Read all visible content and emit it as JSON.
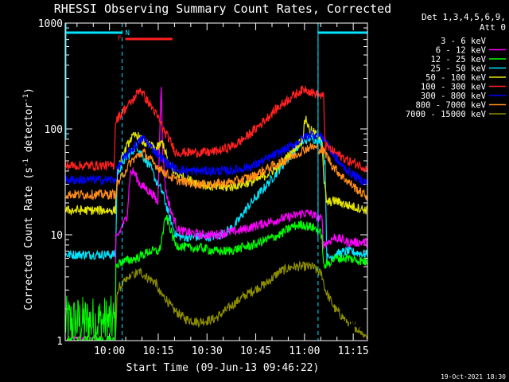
{
  "chart_data": {
    "type": "line",
    "title": "RHESSI Observing Summary Count Rates, Corrected",
    "ylabel_main": "Corrected Count Rate (s",
    "ylabel_mid": " detector",
    "ylabel_end": ")",
    "ylabel_sup": "-1",
    "xlabel": "Start Time (09-Jun-13 09:46:22)",
    "timestamp": "19-Oct-2021 18:30",
    "y_scale": "log",
    "ylim": [
      1,
      1000
    ],
    "y_ticks": [
      {
        "value": 1,
        "label": "1"
      },
      {
        "value": 10,
        "label": "10"
      },
      {
        "value": 100,
        "label": "100"
      },
      {
        "value": 1000,
        "label": "1000"
      }
    ],
    "x_range_minutes": [
      0,
      93
    ],
    "x_ticks": [
      {
        "minute": 13.63,
        "label": "10:00"
      },
      {
        "minute": 28.63,
        "label": "10:15"
      },
      {
        "minute": 43.63,
        "label": "10:30"
      },
      {
        "minute": 58.63,
        "label": "10:45"
      },
      {
        "minute": 73.63,
        "label": "11:00"
      },
      {
        "minute": 88.63,
        "label": "11:15"
      }
    ],
    "legend": {
      "header": [
        "Det 1,3,4,5,6,9,",
        "Att 0"
      ],
      "placement": "right"
    },
    "flags": [
      {
        "label": "N",
        "color": "#00e5ff"
      },
      {
        "label": "F",
        "color": "#ff2020"
      }
    ],
    "night_boundaries_minutes": [
      17.5,
      77.8
    ],
    "series": [
      {
        "name": "3 - 6 keV",
        "color": "#000000",
        "points": [
          [
            0,
            1.0
          ],
          [
            15.5,
            1.0
          ],
          [
            17,
            2.3
          ],
          [
            22,
            5
          ],
          [
            26,
            6
          ],
          [
            29,
            8
          ],
          [
            30,
            6.5
          ],
          [
            34,
            4
          ],
          [
            38,
            3.8
          ],
          [
            42,
            3.5
          ],
          [
            48,
            3.3
          ],
          [
            52,
            3.5
          ],
          [
            57,
            4.5
          ],
          [
            62,
            5.5
          ],
          [
            66,
            6.5
          ],
          [
            70,
            8.5
          ],
          [
            73,
            9.5
          ],
          [
            75,
            9
          ],
          [
            78,
            7
          ],
          [
            79,
            5.5
          ],
          [
            80,
            4
          ],
          [
            83,
            3
          ],
          [
            85,
            2
          ],
          [
            88,
            1.5
          ],
          [
            93,
            1.2
          ]
        ]
      },
      {
        "name": "6 - 12 keV",
        "color": "#ff00ff",
        "points": [
          [
            0,
            1.0
          ],
          [
            15.5,
            1.0
          ],
          [
            15.5,
            9
          ],
          [
            17,
            11
          ],
          [
            19,
            15
          ],
          [
            20,
            38
          ],
          [
            21,
            40
          ],
          [
            23,
            30
          ],
          [
            25,
            27
          ],
          [
            27,
            24
          ],
          [
            28.5,
            20
          ],
          [
            29.5,
            270
          ],
          [
            30,
            60
          ],
          [
            31,
            25
          ],
          [
            33,
            15
          ],
          [
            35,
            11
          ],
          [
            38,
            10.5
          ],
          [
            42,
            10
          ],
          [
            46,
            10
          ],
          [
            50,
            10.5
          ],
          [
            54,
            11
          ],
          [
            58,
            12
          ],
          [
            62,
            13
          ],
          [
            66,
            14
          ],
          [
            70,
            15
          ],
          [
            73,
            16
          ],
          [
            75,
            16
          ],
          [
            77,
            15
          ],
          [
            79,
            14
          ],
          [
            79.5,
            8
          ],
          [
            83,
            9.5
          ],
          [
            87,
            8.5
          ],
          [
            93,
            8.5
          ]
        ]
      },
      {
        "name": "12 - 25 keV",
        "color": "#00ff00",
        "points": [
          [
            0,
            1.0
          ],
          [
            15.5,
            1.0
          ],
          [
            15.5,
            5
          ],
          [
            17,
            5.5
          ],
          [
            22,
            6
          ],
          [
            26,
            7
          ],
          [
            29,
            7
          ],
          [
            31,
            15
          ],
          [
            34,
            8
          ],
          [
            38,
            7.5
          ],
          [
            42,
            7.5
          ],
          [
            46,
            7
          ],
          [
            50,
            7
          ],
          [
            54,
            7.5
          ],
          [
            58,
            8
          ],
          [
            62,
            9
          ],
          [
            66,
            10
          ],
          [
            70,
            12
          ],
          [
            73,
            12.5
          ],
          [
            75,
            12
          ],
          [
            77,
            11.5
          ],
          [
            79,
            10
          ],
          [
            79.5,
            5
          ],
          [
            83,
            6
          ],
          [
            87,
            6
          ],
          [
            93,
            5.5
          ]
        ]
      },
      {
        "name": "25 - 50 keV",
        "color": "#00e5ff",
        "points": [
          [
            0,
            6.5
          ],
          [
            15.5,
            6.5
          ],
          [
            16,
            38
          ],
          [
            18,
            50
          ],
          [
            20,
            58
          ],
          [
            22,
            70
          ],
          [
            24,
            55
          ],
          [
            26,
            45
          ],
          [
            28,
            32
          ],
          [
            30,
            25
          ],
          [
            32,
            15
          ],
          [
            34,
            10
          ],
          [
            36,
            9.5
          ],
          [
            40,
            9.5
          ],
          [
            44,
            9.5
          ],
          [
            48,
            10
          ],
          [
            52,
            12
          ],
          [
            56,
            18
          ],
          [
            60,
            25
          ],
          [
            64,
            35
          ],
          [
            68,
            50
          ],
          [
            72,
            70
          ],
          [
            75,
            82
          ],
          [
            77,
            80
          ],
          [
            79,
            75
          ],
          [
            80,
            45
          ],
          [
            80.5,
            6
          ],
          [
            83,
            6.5
          ],
          [
            87,
            7
          ],
          [
            93,
            6.5
          ]
        ]
      },
      {
        "name": "50 - 100 keV",
        "color": "#e6e600",
        "points": [
          [
            0,
            17
          ],
          [
            15.5,
            17
          ],
          [
            16,
            40
          ],
          [
            18,
            58
          ],
          [
            20,
            80
          ],
          [
            22,
            88
          ],
          [
            24,
            75
          ],
          [
            26,
            70
          ],
          [
            28,
            65
          ],
          [
            30,
            75
          ],
          [
            32,
            45
          ],
          [
            34,
            38
          ],
          [
            38,
            33
          ],
          [
            42,
            30
          ],
          [
            46,
            28
          ],
          [
            50,
            28
          ],
          [
            54,
            30
          ],
          [
            58,
            32
          ],
          [
            62,
            37
          ],
          [
            66,
            45
          ],
          [
            70,
            62
          ],
          [
            73,
            80
          ],
          [
            74,
            130
          ],
          [
            75,
            100
          ],
          [
            77,
            90
          ],
          [
            79,
            85
          ],
          [
            79.5,
            35
          ],
          [
            80.5,
            20
          ],
          [
            83,
            21
          ],
          [
            87,
            19
          ],
          [
            93,
            17
          ]
        ]
      },
      {
        "name": "100 - 300 keV",
        "color": "#ff2020",
        "points": [
          [
            0,
            45
          ],
          [
            15,
            45
          ],
          [
            15.5,
            120
          ],
          [
            18,
            150
          ],
          [
            21,
            190
          ],
          [
            23,
            240
          ],
          [
            25,
            190
          ],
          [
            27,
            155
          ],
          [
            29,
            120
          ],
          [
            30,
            100
          ],
          [
            32,
            80
          ],
          [
            34,
            60
          ],
          [
            37,
            60
          ],
          [
            40,
            60
          ],
          [
            44,
            60
          ],
          [
            48,
            63
          ],
          [
            52,
            70
          ],
          [
            56,
            85
          ],
          [
            60,
            110
          ],
          [
            64,
            145
          ],
          [
            68,
            185
          ],
          [
            72,
            225
          ],
          [
            74,
            240
          ],
          [
            76,
            220
          ],
          [
            78,
            210
          ],
          [
            79.5,
            200
          ],
          [
            80,
            70
          ],
          [
            83,
            60
          ],
          [
            87,
            50
          ],
          [
            91,
            45
          ],
          [
            93,
            42
          ]
        ]
      },
      {
        "name": "300 - 800 keV",
        "color": "#0000ff",
        "points": [
          [
            0,
            33
          ],
          [
            15.5,
            33
          ],
          [
            16,
            42
          ],
          [
            18,
            52
          ],
          [
            20,
            62
          ],
          [
            22,
            72
          ],
          [
            24,
            82
          ],
          [
            26,
            70
          ],
          [
            28,
            60
          ],
          [
            30,
            52
          ],
          [
            32,
            46
          ],
          [
            34,
            42
          ],
          [
            38,
            40
          ],
          [
            42,
            40
          ],
          [
            46,
            40
          ],
          [
            50,
            40
          ],
          [
            54,
            42
          ],
          [
            58,
            45
          ],
          [
            62,
            52
          ],
          [
            66,
            60
          ],
          [
            70,
            70
          ],
          [
            74,
            85
          ],
          [
            76,
            90
          ],
          [
            78,
            87
          ],
          [
            80,
            80
          ],
          [
            82,
            60
          ],
          [
            85,
            45
          ],
          [
            88,
            38
          ],
          [
            91,
            33
          ],
          [
            93,
            31
          ]
        ]
      },
      {
        "name": "800 - 7000 keV",
        "color": "#ff8c1a",
        "points": [
          [
            0,
            24
          ],
          [
            15.5,
            24
          ],
          [
            16,
            30
          ],
          [
            18,
            38
          ],
          [
            20,
            48
          ],
          [
            22,
            55
          ],
          [
            24,
            60
          ],
          [
            26,
            52
          ],
          [
            28,
            45
          ],
          [
            30,
            40
          ],
          [
            32,
            36
          ],
          [
            34,
            33
          ],
          [
            38,
            31
          ],
          [
            42,
            30
          ],
          [
            46,
            30
          ],
          [
            50,
            31
          ],
          [
            54,
            33
          ],
          [
            58,
            36
          ],
          [
            62,
            42
          ],
          [
            66,
            48
          ],
          [
            70,
            55
          ],
          [
            74,
            65
          ],
          [
            76,
            68
          ],
          [
            78,
            65
          ],
          [
            80,
            60
          ],
          [
            82,
            46
          ],
          [
            85,
            36
          ],
          [
            88,
            30
          ],
          [
            91,
            25
          ],
          [
            93,
            23
          ]
        ]
      },
      {
        "name": "7000 - 15000 keV",
        "color": "#8c8c00",
        "points": [
          [
            0,
            1.0
          ],
          [
            15.5,
            1.0
          ],
          [
            16,
            3
          ],
          [
            18,
            3.5
          ],
          [
            20,
            4
          ],
          [
            23,
            4.5
          ],
          [
            25,
            4
          ],
          [
            28,
            3.5
          ],
          [
            29,
            2.8
          ],
          [
            31,
            2.5
          ],
          [
            33,
            2
          ],
          [
            37,
            1.6
          ],
          [
            41,
            1.5
          ],
          [
            46,
            1.6
          ],
          [
            50,
            2
          ],
          [
            54,
            2.5
          ],
          [
            58,
            3
          ],
          [
            62,
            3.5
          ],
          [
            66,
            4.5
          ],
          [
            70,
            5
          ],
          [
            74,
            5
          ],
          [
            76,
            5
          ],
          [
            79,
            4.2
          ],
          [
            80,
            3
          ],
          [
            83,
            2
          ],
          [
            86,
            1.6
          ],
          [
            90,
            1.3
          ],
          [
            93,
            1.1
          ]
        ]
      },
      {
        "name": "",
        "color": "#00ff00",
        "background": true,
        "points": [
          [
            0,
            1.5
          ],
          [
            15.5,
            1.5
          ]
        ]
      }
    ]
  }
}
